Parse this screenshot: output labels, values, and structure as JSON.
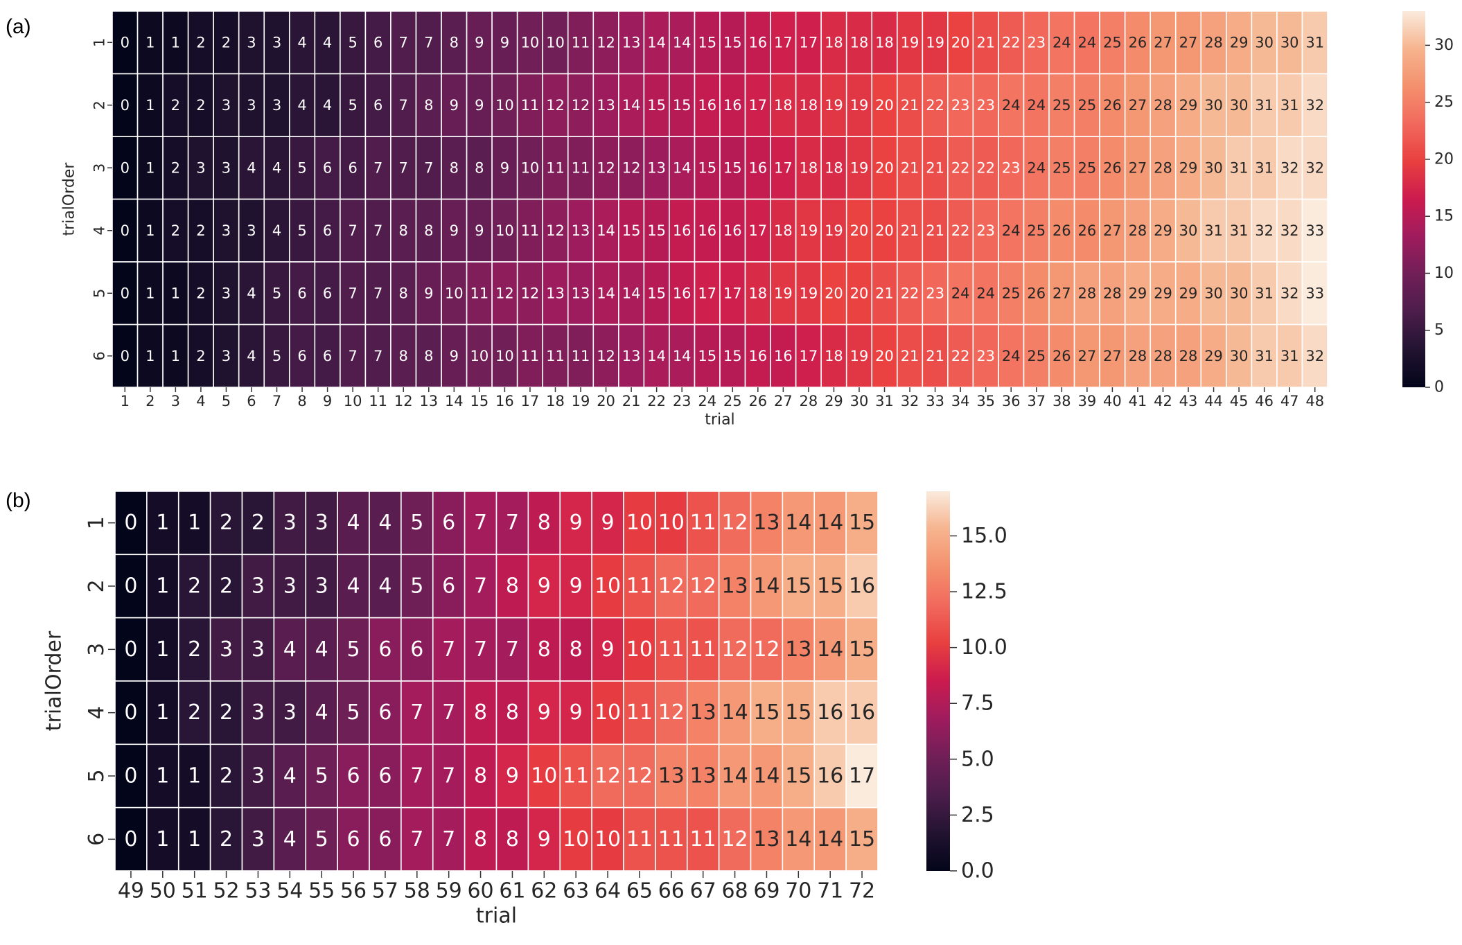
{
  "chart_data": [
    {
      "type": "heatmap",
      "panel_label": "(a)",
      "xlabel": "trial",
      "ylabel": "trialOrder",
      "x": [
        1,
        2,
        3,
        4,
        5,
        6,
        7,
        8,
        9,
        10,
        11,
        12,
        13,
        14,
        15,
        16,
        17,
        18,
        19,
        20,
        21,
        22,
        23,
        24,
        25,
        26,
        27,
        28,
        29,
        30,
        31,
        32,
        33,
        34,
        35,
        36,
        37,
        38,
        39,
        40,
        41,
        42,
        43,
        44,
        45,
        46,
        47,
        48
      ],
      "y": [
        1,
        2,
        3,
        4,
        5,
        6
      ],
      "values": [
        [
          0,
          1,
          1,
          2,
          2,
          3,
          3,
          4,
          4,
          5,
          6,
          7,
          7,
          8,
          9,
          9,
          10,
          10,
          11,
          12,
          13,
          14,
          14,
          15,
          15,
          16,
          17,
          17,
          18,
          18,
          18,
          19,
          19,
          20,
          21,
          22,
          23,
          24,
          24,
          25,
          26,
          27,
          27,
          28,
          29,
          30,
          30,
          31
        ],
        [
          0,
          1,
          2,
          2,
          3,
          3,
          3,
          4,
          4,
          5,
          6,
          7,
          8,
          9,
          9,
          10,
          11,
          12,
          12,
          13,
          14,
          15,
          15,
          16,
          16,
          17,
          18,
          18,
          19,
          19,
          20,
          21,
          22,
          23,
          23,
          24,
          24,
          25,
          25,
          26,
          27,
          28,
          29,
          30,
          30,
          31,
          31,
          32
        ],
        [
          0,
          1,
          2,
          3,
          3,
          4,
          4,
          5,
          6,
          6,
          7,
          7,
          7,
          8,
          8,
          9,
          10,
          11,
          11,
          12,
          12,
          13,
          14,
          15,
          15,
          16,
          17,
          18,
          18,
          19,
          20,
          21,
          21,
          22,
          22,
          23,
          24,
          25,
          25,
          26,
          27,
          28,
          29,
          30,
          31,
          31,
          32,
          32
        ],
        [
          0,
          1,
          2,
          2,
          3,
          3,
          4,
          5,
          6,
          7,
          7,
          8,
          8,
          9,
          9,
          10,
          11,
          12,
          13,
          14,
          15,
          15,
          16,
          16,
          16,
          17,
          18,
          19,
          19,
          20,
          20,
          21,
          21,
          22,
          23,
          24,
          25,
          26,
          26,
          27,
          28,
          29,
          30,
          31,
          31,
          32,
          32,
          33
        ],
        [
          0,
          1,
          1,
          2,
          3,
          4,
          5,
          6,
          6,
          7,
          7,
          8,
          9,
          10,
          11,
          12,
          12,
          13,
          13,
          14,
          14,
          15,
          16,
          17,
          17,
          18,
          19,
          19,
          20,
          20,
          21,
          22,
          23,
          24,
          24,
          25,
          26,
          27,
          28,
          28,
          29,
          29,
          29,
          30,
          30,
          31,
          32,
          33
        ],
        [
          0,
          1,
          1,
          2,
          3,
          4,
          5,
          6,
          6,
          7,
          7,
          8,
          8,
          9,
          10,
          10,
          11,
          11,
          11,
          12,
          13,
          14,
          14,
          15,
          15,
          16,
          16,
          17,
          18,
          19,
          20,
          21,
          21,
          22,
          23,
          24,
          25,
          26,
          27,
          27,
          28,
          28,
          28,
          29,
          30,
          31,
          31,
          32
        ]
      ],
      "vmin": 0,
      "vmax": 33,
      "colorbar_ticks": [
        "0",
        "5",
        "10",
        "15",
        "20",
        "25",
        "30"
      ],
      "colormap": "rocket",
      "grid": "white cell borders"
    },
    {
      "type": "heatmap",
      "panel_label": "(b)",
      "xlabel": "trial",
      "ylabel": "trialOrder",
      "x": [
        49,
        50,
        51,
        52,
        53,
        54,
        55,
        56,
        57,
        58,
        59,
        60,
        61,
        62,
        63,
        64,
        65,
        66,
        67,
        68,
        69,
        70,
        71,
        72
      ],
      "y": [
        1,
        2,
        3,
        4,
        5,
        6
      ],
      "values": [
        [
          0,
          1,
          1,
          2,
          2,
          3,
          3,
          4,
          4,
          5,
          6,
          7,
          7,
          8,
          9,
          9,
          10,
          10,
          11,
          12,
          13,
          14,
          14,
          15
        ],
        [
          0,
          1,
          2,
          2,
          3,
          3,
          3,
          4,
          4,
          5,
          6,
          7,
          8,
          9,
          9,
          10,
          11,
          12,
          12,
          13,
          14,
          15,
          15,
          16
        ],
        [
          0,
          1,
          2,
          3,
          3,
          4,
          4,
          5,
          6,
          6,
          7,
          7,
          7,
          8,
          8,
          9,
          10,
          11,
          11,
          12,
          12,
          13,
          14,
          15
        ],
        [
          0,
          1,
          2,
          2,
          3,
          3,
          4,
          5,
          6,
          7,
          7,
          8,
          8,
          9,
          9,
          10,
          11,
          12,
          13,
          14,
          15,
          15,
          16,
          16
        ],
        [
          0,
          1,
          1,
          2,
          3,
          4,
          5,
          6,
          6,
          7,
          7,
          8,
          9,
          10,
          11,
          12,
          12,
          13,
          13,
          14,
          14,
          15,
          16,
          17
        ],
        [
          0,
          1,
          1,
          2,
          3,
          4,
          5,
          6,
          6,
          7,
          7,
          8,
          8,
          9,
          10,
          10,
          11,
          11,
          11,
          12,
          13,
          14,
          14,
          15
        ]
      ],
      "vmin": 0,
      "vmax": 17,
      "colorbar_ticks": [
        "0.0",
        "2.5",
        "5.0",
        "7.5",
        "10.0",
        "12.5",
        "15.0"
      ],
      "colormap": "rocket",
      "grid": "white cell borders"
    }
  ]
}
